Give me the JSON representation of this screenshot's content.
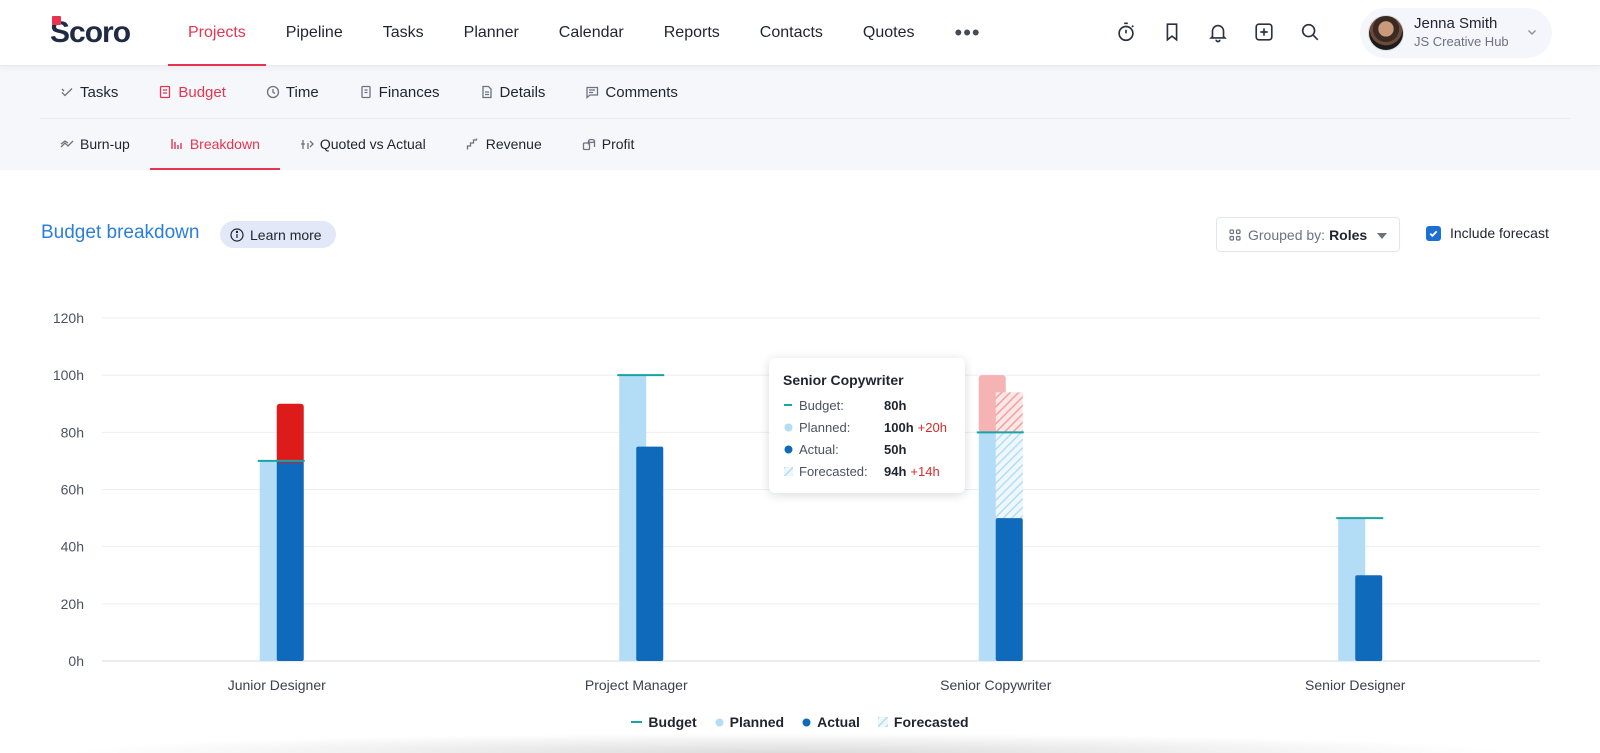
{
  "app": {
    "logo_text": "Scoro",
    "nav": [
      "Projects",
      "Pipeline",
      "Tasks",
      "Planner",
      "Calendar",
      "Reports",
      "Contacts",
      "Quotes"
    ],
    "active_nav": "Projects",
    "more": "•••",
    "user": {
      "name": "Jenna Smith",
      "company": "JS Creative Hub"
    }
  },
  "tabs_primary": [
    {
      "label": "Tasks",
      "icon": "check-icon"
    },
    {
      "label": "Budget",
      "icon": "budget-icon",
      "active": true
    },
    {
      "label": "Time",
      "icon": "clock-icon"
    },
    {
      "label": "Finances",
      "icon": "coins-icon"
    },
    {
      "label": "Details",
      "icon": "document-icon"
    },
    {
      "label": "Comments",
      "icon": "comment-icon"
    }
  ],
  "tabs_secondary": [
    {
      "label": "Burn-up",
      "icon": "burnup-icon"
    },
    {
      "label": "Breakdown",
      "icon": "bars-icon",
      "active": true
    },
    {
      "label": "Quoted vs Actual",
      "icon": "quoted-icon"
    },
    {
      "label": "Revenue",
      "icon": "revenue-icon"
    },
    {
      "label": "Profit",
      "icon": "profit-icon"
    }
  ],
  "header": {
    "title": "Budget breakdown",
    "learn_more": "Learn more",
    "grouped_label": "Grouped by:",
    "grouped_value": "Roles",
    "include_forecast": "Include forecast",
    "include_forecast_checked": true
  },
  "colors": {
    "budget": "#1aa3a3",
    "planned": "#b3dcf6",
    "actual": "#0f6abb",
    "over": "#dd1b1b",
    "planned_over": "#f5b3b3",
    "forecast_over": "#f08c8c",
    "forecast": "#c4e3f8",
    "accent": "#e8344e",
    "title_blue": "#2b7fd9"
  },
  "chart_data": {
    "type": "bar",
    "categories": [
      "Junior Designer",
      "Project Manager",
      "Senior Copywriter",
      "Senior Designer"
    ],
    "series": [
      {
        "name": "Budget",
        "values": [
          70,
          100,
          80,
          50
        ]
      },
      {
        "name": "Planned",
        "values": [
          70,
          100,
          100,
          50
        ]
      },
      {
        "name": "Actual",
        "values": [
          90,
          75,
          50,
          30
        ]
      },
      {
        "name": "Forecasted",
        "values": [
          null,
          null,
          94,
          null
        ]
      }
    ],
    "ylim": [
      0,
      120
    ],
    "yticks": [
      "0h",
      "20h",
      "40h",
      "60h",
      "80h",
      "100h",
      "120h"
    ],
    "grid": true,
    "legend_position": "bottom-center",
    "tooltip": {
      "title": "Senior Copywriter",
      "rows": [
        {
          "label": "Budget:",
          "value": "80h",
          "diff": ""
        },
        {
          "label": "Planned:",
          "value": "100h",
          "diff": "+20h"
        },
        {
          "label": "Actual:",
          "value": "50h",
          "diff": ""
        },
        {
          "label": "Forecasted:",
          "value": "94h",
          "diff": "+14h"
        }
      ]
    }
  }
}
